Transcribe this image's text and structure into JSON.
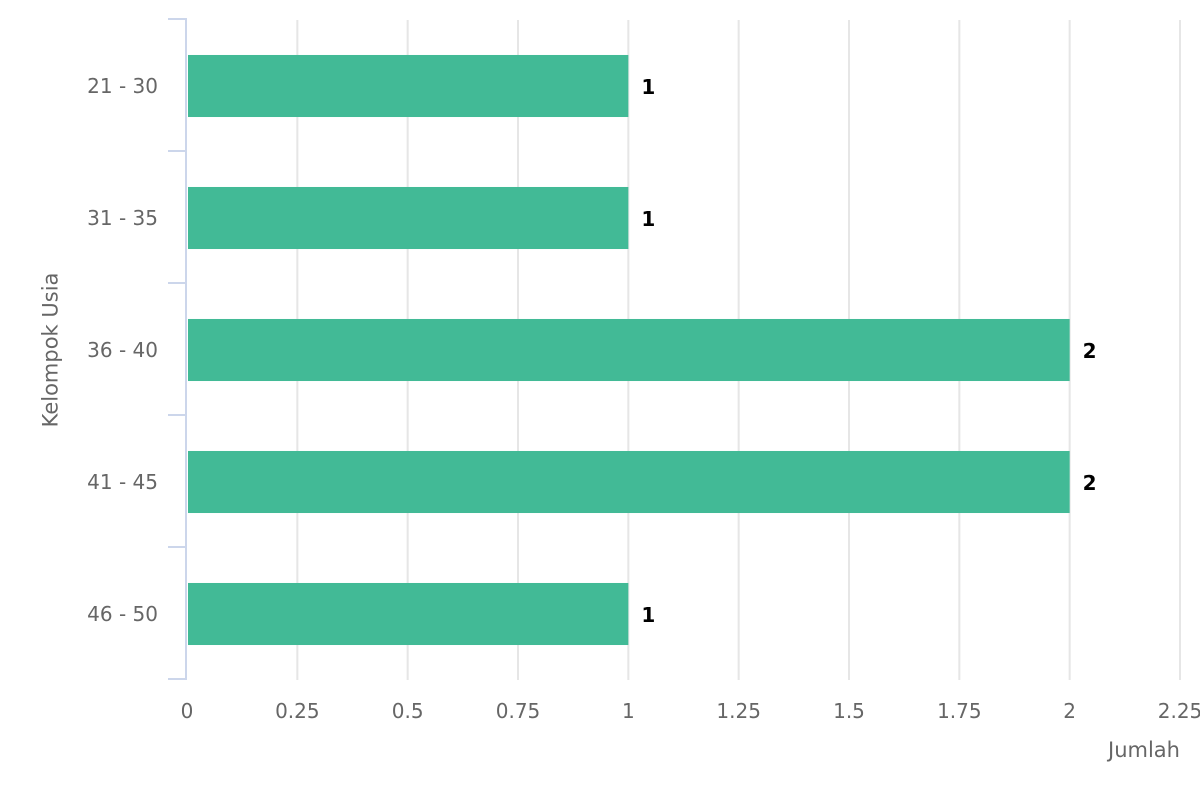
{
  "chart_data": {
    "type": "bar",
    "orientation": "horizontal",
    "categories": [
      "21 - 30",
      "31 - 35",
      "36 - 40",
      "41 - 45",
      "46 - 50"
    ],
    "values": [
      1,
      1,
      2,
      2,
      1
    ],
    "data_labels": [
      "1",
      "1",
      "2",
      "2",
      "1"
    ],
    "xlabel": "Jumlah",
    "ylabel": "Kelompok Usia",
    "xlim": [
      0,
      2.25
    ],
    "x_ticks": [
      0,
      0.25,
      0.5,
      0.75,
      1,
      1.25,
      1.5,
      1.75,
      2,
      2.25
    ],
    "x_tick_labels": [
      "0",
      "0.25",
      "0.5",
      "0.75",
      "1",
      "1.25",
      "1.5",
      "1.75",
      "2",
      "2.25"
    ],
    "grid": true,
    "legend": "none",
    "colors": {
      "bar": "#42ba96",
      "grid": "#e6e6e6",
      "axis": "#ccd6eb"
    }
  }
}
